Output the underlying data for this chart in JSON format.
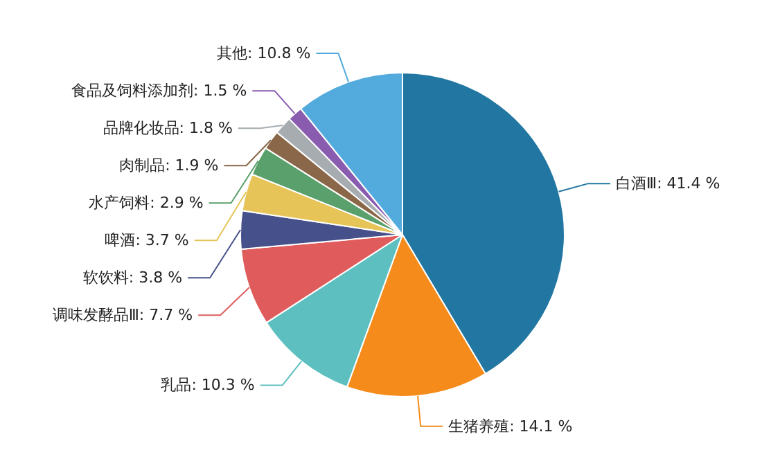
{
  "chart_data": {
    "type": "pie",
    "categories": [
      "白酒Ⅲ",
      "生猪养殖",
      "乳品",
      "调味发酵品Ⅲ",
      "软饮料",
      "啤酒",
      "水产饲料",
      "肉制品",
      "品牌化妆品",
      "食品及饲料添加剂",
      "其他"
    ],
    "values": [
      41.4,
      14.1,
      10.3,
      7.7,
      3.8,
      3.7,
      2.9,
      1.9,
      1.8,
      1.5,
      10.8
    ],
    "value_labels": [
      "41.4 %",
      "14.1 %",
      "10.3 %",
      "7.7 %",
      "3.8 %",
      "3.7 %",
      "2.9 %",
      "1.9 %",
      "1.8 %",
      "1.5 %",
      "10.8 %"
    ],
    "colors": [
      "#2277a2",
      "#f58b1a",
      "#5dbfbf",
      "#e05c5c",
      "#46508a",
      "#e6c458",
      "#5aa06c",
      "#8a6748",
      "#a7acb0",
      "#8a5cb0",
      "#52abdc"
    ]
  }
}
